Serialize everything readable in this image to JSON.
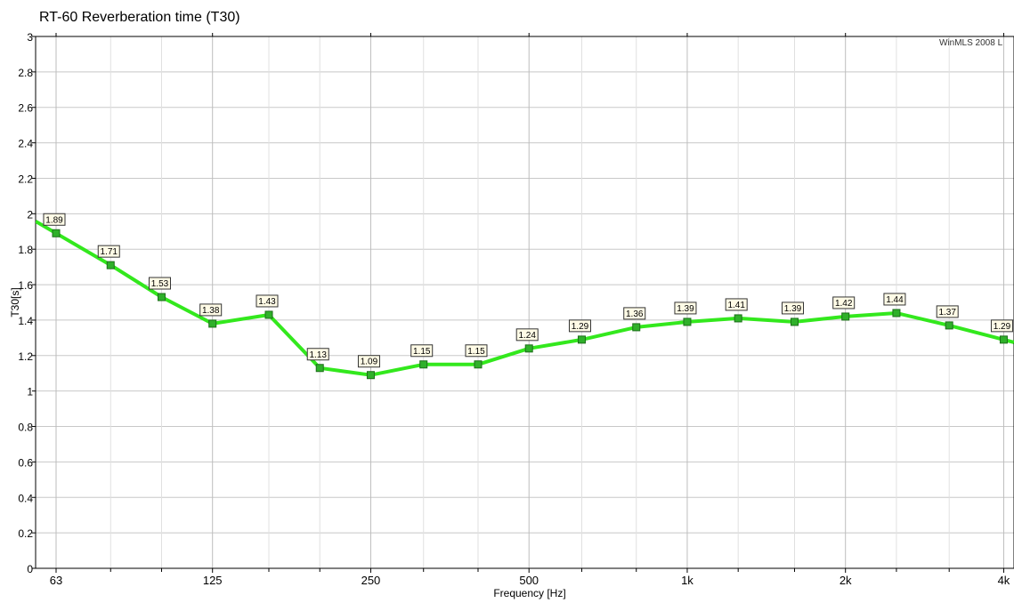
{
  "chart_data": {
    "type": "line",
    "title": "RT-60 Reverberation time (T30)",
    "xlabel": "Frequency [Hz]",
    "ylabel": "T30[s]",
    "watermark": "WinMLS 2008 L",
    "x_scale": "log",
    "ylim": [
      0,
      3
    ],
    "y_ticks": [
      "0",
      "0.2",
      "0.4",
      "0.6",
      "0.8",
      "1",
      "1.2",
      "1.4",
      "1.6",
      "1.8",
      "2",
      "2.2",
      "2.4",
      "2.6",
      "2.8",
      "3"
    ],
    "x_ticks": [
      {
        "value": 63,
        "label": "63"
      },
      {
        "value": 125,
        "label": "125"
      },
      {
        "value": 250,
        "label": "250"
      },
      {
        "value": 500,
        "label": "500"
      },
      {
        "value": 1000,
        "label": "1k"
      },
      {
        "value": 2000,
        "label": "2k"
      },
      {
        "value": 4000,
        "label": "4k"
      }
    ],
    "grid": true,
    "series": [
      {
        "color": "#33e81d",
        "marker_color": "#2fb02a",
        "x": [
          63,
          80,
          100,
          125,
          160,
          200,
          250,
          315,
          400,
          500,
          630,
          800,
          1000,
          1250,
          1600,
          2000,
          2500,
          3150,
          4000
        ],
        "values": [
          1.89,
          1.71,
          1.53,
          1.38,
          1.43,
          1.13,
          1.09,
          1.15,
          1.15,
          1.24,
          1.29,
          1.36,
          1.39,
          1.41,
          1.39,
          1.42,
          1.44,
          1.37,
          1.29
        ],
        "labels": [
          "1.89",
          "1.71",
          "1.53",
          "1.38",
          "1.43",
          "1.13",
          "1.09",
          "1.15",
          "1.15",
          "1.24",
          "1.29",
          "1.36",
          "1.39",
          "1.41",
          "1.39",
          "1.42",
          "1.44",
          "1.37",
          "1.29"
        ]
      }
    ]
  }
}
